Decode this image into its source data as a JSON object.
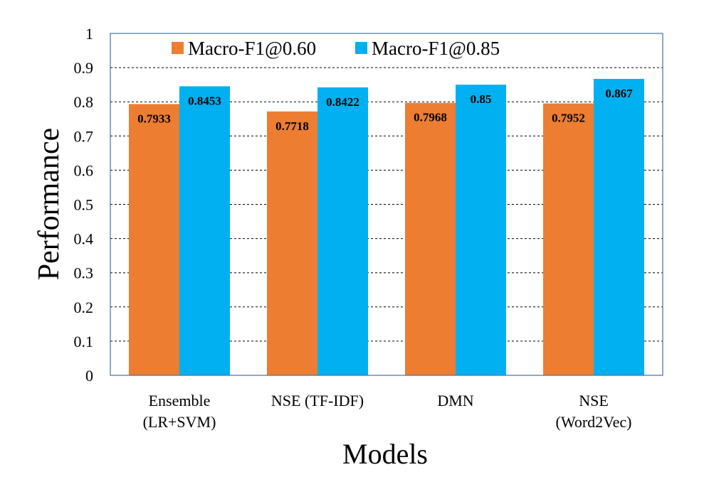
{
  "chart_data": {
    "type": "bar",
    "title": "",
    "xlabel": "Models",
    "ylabel": "Performance",
    "ylim": [
      0,
      1
    ],
    "yticks": [
      "0",
      "0.1",
      "0.2",
      "0.3",
      "0.4",
      "0.5",
      "0.6",
      "0.7",
      "0.8",
      "0.9",
      "1"
    ],
    "grid": true,
    "legend_position": "top",
    "categories": [
      [
        "Ensemble",
        "(LR+SVM)"
      ],
      [
        "NSE (TF-IDF)"
      ],
      [
        "DMN"
      ],
      [
        "NSE",
        "(Word2Vec)"
      ]
    ],
    "series": [
      {
        "name": "Macro-F1@0.60",
        "color": "#ED7D31",
        "values": [
          0.7933,
          0.7718,
          0.7968,
          0.7952
        ],
        "labels": [
          "0.7933",
          "0.7718",
          "0.7968",
          "0.7952"
        ]
      },
      {
        "name": "Macro-F1@0.85",
        "color": "#00B0F0",
        "values": [
          0.8453,
          0.8422,
          0.85,
          0.867
        ],
        "labels": [
          "0.8453",
          "0.8422",
          "0.85",
          "0.867"
        ]
      }
    ],
    "frame_color": "#4472A8"
  }
}
